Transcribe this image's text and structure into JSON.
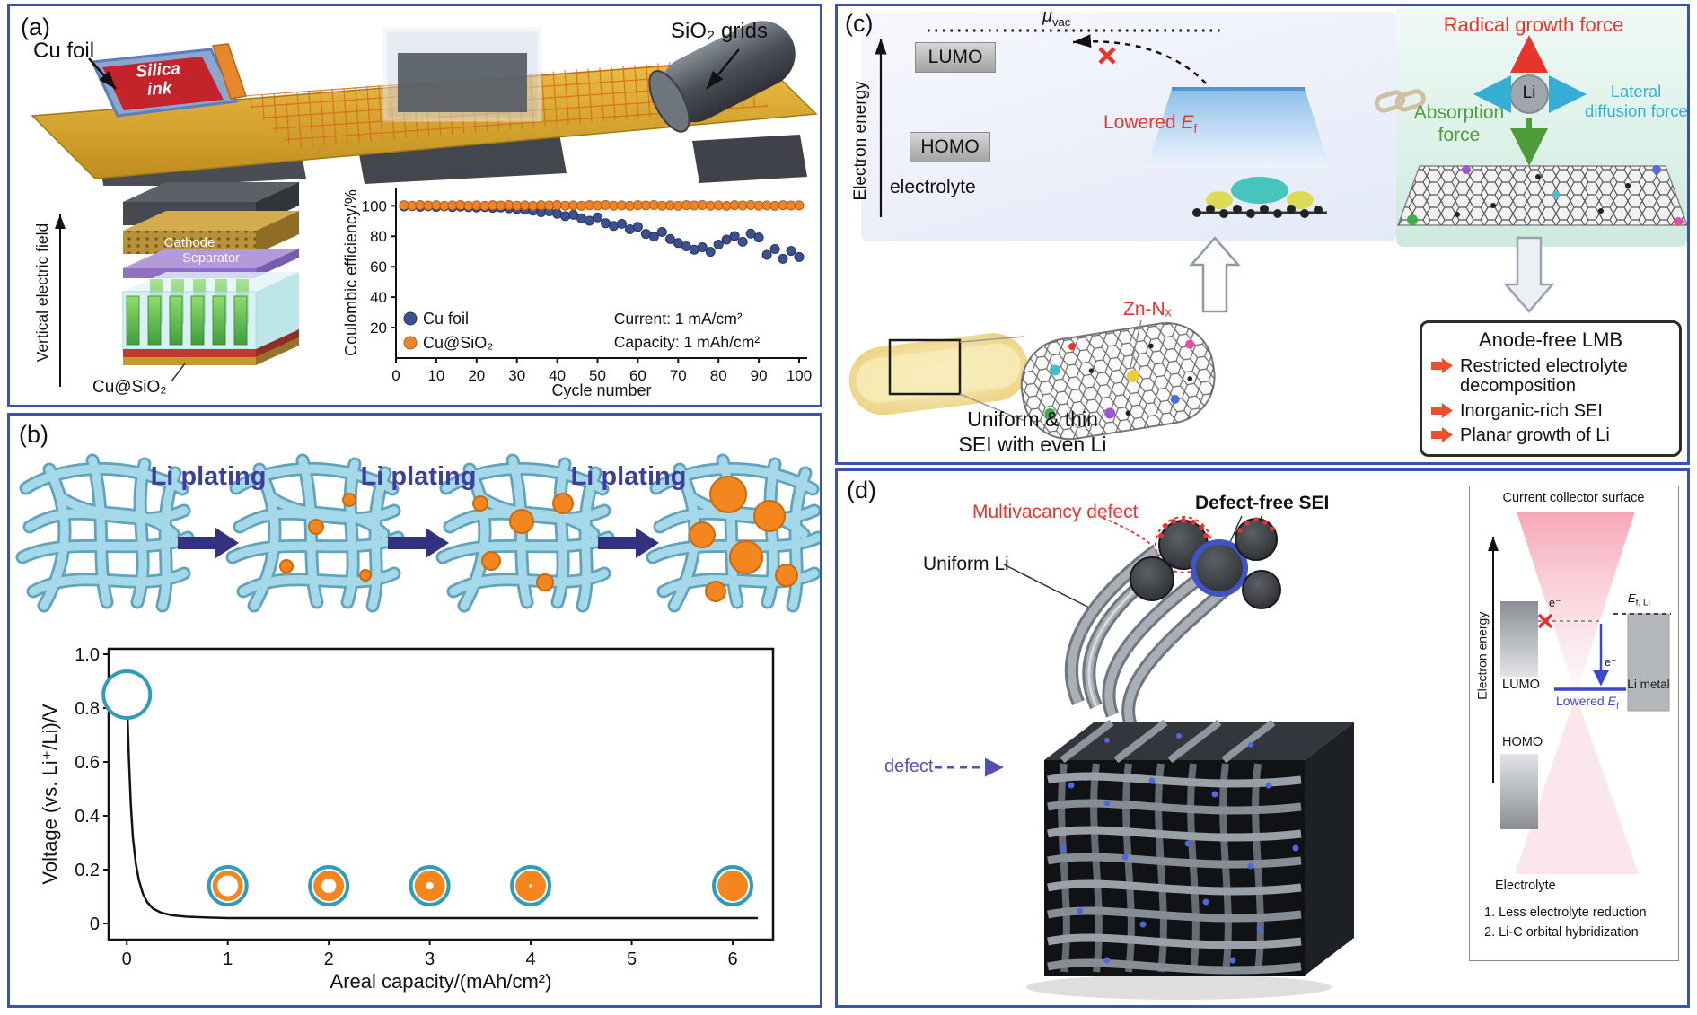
{
  "figure": {
    "border_color": "#3a53ae"
  },
  "panel_a": {
    "tag": "(a)",
    "cu_foil_label": "Cu foil",
    "sio2_grids_label": "SiO₂ grids",
    "silica_ink_lines": [
      "Silica",
      "ink"
    ],
    "vertical_field_label": "Vertical electric field",
    "cathode_label": "Cathode",
    "separator_label": "Separator",
    "cu_sio2_label": "Cu@SiO₂"
  },
  "panel_b": {
    "tag": "(b)",
    "li_plating_labels": [
      "Li plating",
      "Li plating",
      "Li plating"
    ]
  },
  "panel_c": {
    "tag": "(c)",
    "electron_energy_label": "Electron energy",
    "mu_base": "μ",
    "mu_sub": "vac",
    "lumo_label": "LUMO",
    "homo_label": "HOMO",
    "electrolyte_label": "electrolyte",
    "lowered_prefix": "Lowered",
    "ef_base": "E",
    "ef_sub": "f",
    "radical_force_label": "Radical growth force",
    "li_label": "Li",
    "absorption_force_lines": [
      "Absorption",
      "force"
    ],
    "lateral_force_lines": [
      "Lateral",
      "diffusion force"
    ],
    "zn_nx_label": "Zn-Nₓ",
    "sei_caption_lines": [
      "Uniform & thin",
      "SEI with even Li"
    ],
    "lmb_title": "Anode-free LMB",
    "lmb_items": [
      "Restricted electrolyte decomposition",
      "Inorganic-rich SEI",
      "Planar growth of Li"
    ],
    "colors": {
      "radical": "#e8352c",
      "absorption": "#4e9b3a",
      "lateral": "#35aed6"
    }
  },
  "panel_d": {
    "tag": "(d)",
    "multivacancy_label": "Multivacancy defect",
    "defect_free_label": "Defect-free SEI",
    "uniform_li_label": "Uniform Li",
    "defect_label": "defect",
    "inset": {
      "electron_energy_label": "Electron energy",
      "surface_label": "Current collector surface",
      "lumo_label": "LUMO",
      "homo_label": "HOMO",
      "electrolyte_label": "Electrolyte",
      "electron_label": "e⁻",
      "lowered_prefix": "Lowered",
      "ef_base": "E",
      "ef_sub": "f",
      "ef_li_base": "E",
      "ef_li_sub": "f, Li",
      "li_metal_label": "Li metal",
      "notes": [
        "1. Less electrolyte reduction",
        "2. Li-C orbital hybridization"
      ]
    }
  },
  "chart_data": [
    {
      "id": "coulombic",
      "type": "scatter",
      "xlabel": "Cycle number",
      "ylabel": "Coulombic efficiency/%",
      "xlim": [
        0,
        102
      ],
      "ylim": [
        0,
        112
      ],
      "xticks": [
        [
          0,
          "0"
        ],
        [
          10,
          "10"
        ],
        [
          20,
          "20"
        ],
        [
          30,
          "30"
        ],
        [
          40,
          "40"
        ],
        [
          50,
          "50"
        ],
        [
          60,
          "60"
        ],
        [
          70,
          "70"
        ],
        [
          80,
          "80"
        ],
        [
          90,
          "90"
        ],
        [
          100,
          "100"
        ]
      ],
      "yticks": [
        [
          20,
          "20"
        ],
        [
          40,
          "40"
        ],
        [
          60,
          "60"
        ],
        [
          80,
          "80"
        ],
        [
          100,
          "100"
        ]
      ],
      "annotation": [
        "Current: 1 mA/cm²",
        "Capacity: 1 mAh/cm²"
      ],
      "legend": [
        {
          "label": "Cu foil",
          "color": "#3d5191",
          "edge": "#26355f"
        },
        {
          "label": "Cu@SiO₂",
          "color": "#f08228",
          "edge": "#b55f12"
        }
      ],
      "series": [
        {
          "name": "Cu foil",
          "color": "#3d5191",
          "edge": "#26355f",
          "points": [
            [
              2,
              99.6
            ],
            [
              4,
              99.8
            ],
            [
              6,
              99.4
            ],
            [
              8,
              99.7
            ],
            [
              10,
              99.3
            ],
            [
              12,
              99.6
            ],
            [
              14,
              99.2
            ],
            [
              16,
              99.5
            ],
            [
              18,
              99.1
            ],
            [
              20,
              98.9
            ],
            [
              22,
              99.2
            ],
            [
              24,
              98.7
            ],
            [
              26,
              98.9
            ],
            [
              28,
              98.4
            ],
            [
              30,
              97.9
            ],
            [
              32,
              97.4
            ],
            [
              34,
              96.8
            ],
            [
              36,
              95.8
            ],
            [
              38,
              96.4
            ],
            [
              40,
              94.8
            ],
            [
              42,
              93.2
            ],
            [
              44,
              94.1
            ],
            [
              46,
              91.8
            ],
            [
              48,
              90.2
            ],
            [
              50,
              92.4
            ],
            [
              52,
              88.6
            ],
            [
              54,
              86.8
            ],
            [
              56,
              88.2
            ],
            [
              58,
              84.6
            ],
            [
              60,
              86.2
            ],
            [
              62,
              81.6
            ],
            [
              64,
              79.8
            ],
            [
              66,
              82.8
            ],
            [
              68,
              78.2
            ],
            [
              70,
              75.6
            ],
            [
              72,
              73.4
            ],
            [
              74,
              71.2
            ],
            [
              76,
              72.8
            ],
            [
              78,
              69.8
            ],
            [
              80,
              74.6
            ],
            [
              82,
              77.8
            ],
            [
              84,
              80.2
            ],
            [
              86,
              76.4
            ],
            [
              88,
              81.8
            ],
            [
              90,
              79.2
            ],
            [
              92,
              67.8
            ],
            [
              94,
              71.6
            ],
            [
              96,
              65.2
            ],
            [
              98,
              70.4
            ],
            [
              100,
              66.4
            ]
          ]
        },
        {
          "name": "Cu@SiO₂",
          "color": "#f08228",
          "edge": "#b55f12",
          "points": [
            [
              2,
              100.4
            ],
            [
              4,
              100.1
            ],
            [
              6,
              100.5
            ],
            [
              8,
              100.2
            ],
            [
              10,
              100.4
            ],
            [
              12,
              100.0
            ],
            [
              14,
              100.3
            ],
            [
              16,
              100.5
            ],
            [
              18,
              100.1
            ],
            [
              20,
              100.3
            ],
            [
              22,
              100.0
            ],
            [
              24,
              100.4
            ],
            [
              26,
              100.2
            ],
            [
              28,
              100.5
            ],
            [
              30,
              100.1
            ],
            [
              32,
              100.3
            ],
            [
              34,
              100.0
            ],
            [
              36,
              100.4
            ],
            [
              38,
              100.2
            ],
            [
              40,
              100.5
            ],
            [
              42,
              100.1
            ],
            [
              44,
              100.3
            ],
            [
              46,
              100.0
            ],
            [
              48,
              100.4
            ],
            [
              50,
              100.2
            ],
            [
              52,
              100.5
            ],
            [
              54,
              100.1
            ],
            [
              56,
              100.3
            ],
            [
              58,
              100.0
            ],
            [
              60,
              100.4
            ],
            [
              62,
              100.2
            ],
            [
              64,
              100.5
            ],
            [
              66,
              100.1
            ],
            [
              68,
              100.3
            ],
            [
              70,
              100.0
            ],
            [
              72,
              100.4
            ],
            [
              74,
              100.2
            ],
            [
              76,
              100.5
            ],
            [
              78,
              100.1
            ],
            [
              80,
              100.3
            ],
            [
              82,
              100.0
            ],
            [
              84,
              100.4
            ],
            [
              86,
              100.2
            ],
            [
              88,
              100.5
            ],
            [
              90,
              100.1
            ],
            [
              92,
              100.3
            ],
            [
              94,
              100.0
            ],
            [
              96,
              100.4
            ],
            [
              98,
              100.2
            ],
            [
              100,
              100.3
            ]
          ]
        }
      ]
    },
    {
      "id": "voltage",
      "type": "line",
      "xlabel": "Areal capacity/(mAh/cm²)",
      "ylabel": "Voltage (vs. Li⁺/Li)/V",
      "xlim": [
        -0.18,
        6.4
      ],
      "ylim": [
        -0.06,
        1.02
      ],
      "xticks": [
        [
          0,
          "0"
        ],
        [
          1,
          "1"
        ],
        [
          2,
          "2"
        ],
        [
          3,
          "3"
        ],
        [
          4,
          "4"
        ],
        [
          5,
          "5"
        ],
        [
          6,
          "6"
        ]
      ],
      "yticks": [
        [
          0,
          "0"
        ],
        [
          0.2,
          "0.2"
        ],
        [
          0.4,
          "0.4"
        ],
        [
          0.6,
          "0.6"
        ],
        [
          0.8,
          "0.8"
        ],
        [
          1,
          "1.0"
        ]
      ],
      "line_color": "#141414",
      "marker_ring": "#2f9cb8",
      "marker_fill": "#f5861f",
      "line": [
        [
          0,
          0.85
        ],
        [
          0.02,
          0.62
        ],
        [
          0.04,
          0.44
        ],
        [
          0.06,
          0.32
        ],
        [
          0.09,
          0.22
        ],
        [
          0.12,
          0.16
        ],
        [
          0.16,
          0.11
        ],
        [
          0.2,
          0.08
        ],
        [
          0.26,
          0.055
        ],
        [
          0.34,
          0.04
        ],
        [
          0.45,
          0.03
        ],
        [
          0.6,
          0.025
        ],
        [
          0.8,
          0.022
        ],
        [
          1,
          0.02
        ],
        [
          1.5,
          0.02
        ],
        [
          2,
          0.02
        ],
        [
          2.5,
          0.02
        ],
        [
          3,
          0.02
        ],
        [
          3.5,
          0.02
        ],
        [
          4,
          0.02
        ],
        [
          4.5,
          0.02
        ],
        [
          5,
          0.02
        ],
        [
          5.5,
          0.02
        ],
        [
          6,
          0.02
        ],
        [
          6.25,
          0.02
        ]
      ],
      "markers": [
        {
          "x": 0,
          "y": 0.85,
          "r": 26,
          "fill_fraction": 0
        },
        {
          "x": 1,
          "y": 0.14,
          "r": 21,
          "fill_fraction": 0.32
        },
        {
          "x": 2,
          "y": 0.14,
          "r": 21,
          "fill_fraction": 0.52
        },
        {
          "x": 3,
          "y": 0.14,
          "r": 21,
          "fill_fraction": 0.75
        },
        {
          "x": 4,
          "y": 0.14,
          "r": 21,
          "fill_fraction": 0.9
        },
        {
          "x": 6,
          "y": 0.14,
          "r": 21,
          "fill_fraction": 1
        }
      ]
    }
  ]
}
